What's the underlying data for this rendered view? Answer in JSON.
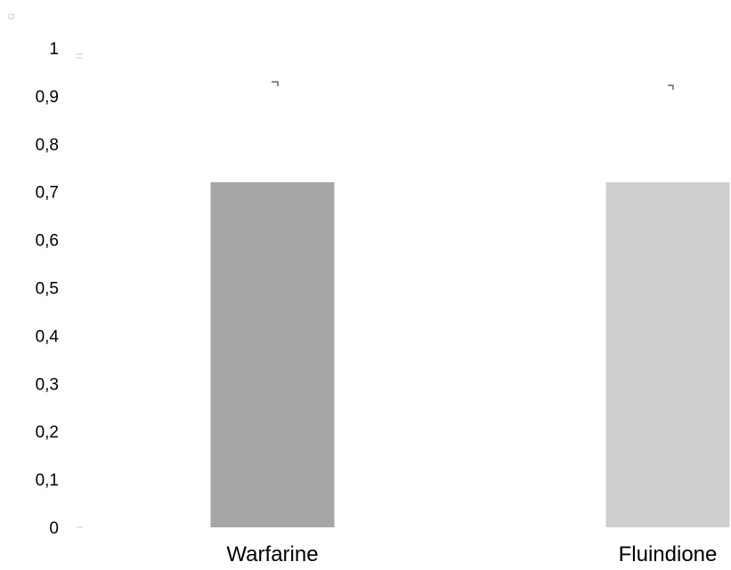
{
  "chart_data": {
    "type": "bar",
    "categories": [
      "Warfarine",
      "Fluindione"
    ],
    "values": [
      0.72,
      0.72
    ],
    "colors": [
      "#a6a6a6",
      "#d0cece"
    ],
    "ylim": [
      0,
      1
    ],
    "yticks": [
      "0",
      "0,1",
      "0,2",
      "0,3",
      "0,4",
      "0,5",
      "0,6",
      "0,7",
      "0,8",
      "0,9",
      "1"
    ],
    "grid": false,
    "legend": "none"
  }
}
